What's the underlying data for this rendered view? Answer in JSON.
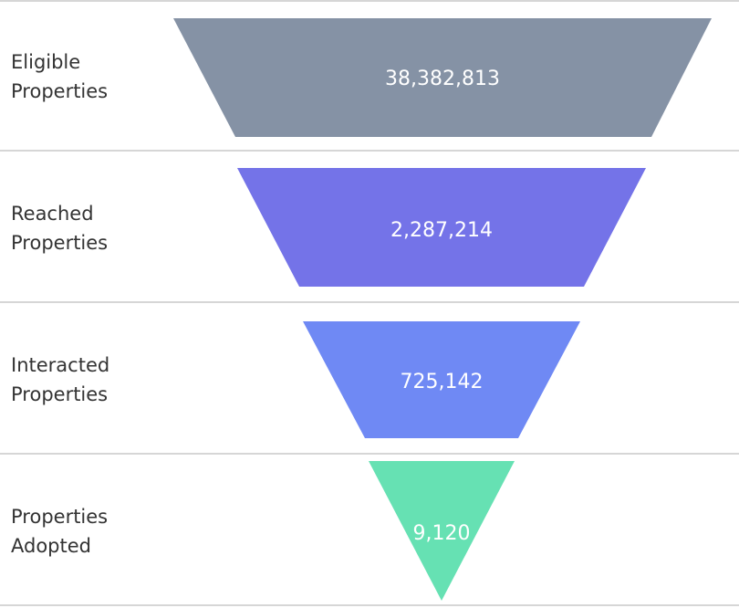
{
  "chart_data": {
    "type": "funnel",
    "stages": [
      {
        "label": "Eligible\nProperties",
        "value": 38382813,
        "value_label": "38,382,813",
        "color": "#8592a5"
      },
      {
        "label": "Reached\nProperties",
        "value": 2287214,
        "value_label": "2,287,214",
        "color": "#7473e8"
      },
      {
        "label": "Interacted\nProperties",
        "value": 725142,
        "value_label": "725,142",
        "color": "#6f89f4"
      },
      {
        "label": "Properties\nAdopted",
        "value": 9120,
        "value_label": "9,120",
        "color": "#66e1b3"
      }
    ]
  }
}
